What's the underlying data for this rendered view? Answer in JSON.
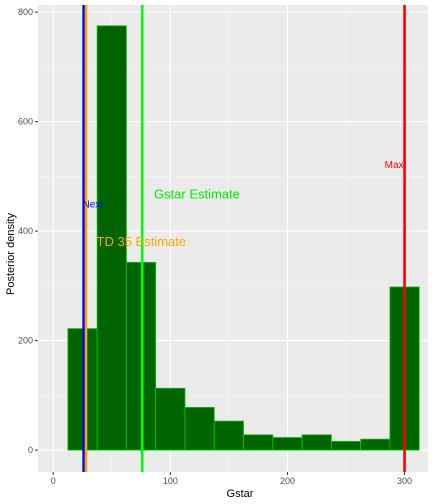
{
  "chart_data": {
    "type": "bar",
    "subtype": "histogram",
    "title": "",
    "xlabel": "Gstar",
    "ylabel": "Posterior density",
    "xlim": [
      -13,
      320
    ],
    "ylim": [
      -40,
      813
    ],
    "x_ticks": [
      0,
      100,
      200,
      300
    ],
    "y_ticks": [
      0,
      200,
      400,
      600,
      800
    ],
    "grid": true,
    "bar_fill": "#006400",
    "bar_outline": "#00cc00",
    "panel_background": "#ebebeb",
    "bins": [
      {
        "x0": 12.5,
        "x1": 37.5,
        "count": 222
      },
      {
        "x0": 37.5,
        "x1": 62.5,
        "count": 775
      },
      {
        "x0": 62.5,
        "x1": 87.5,
        "count": 343
      },
      {
        "x0": 87.5,
        "x1": 112.5,
        "count": 113
      },
      {
        "x0": 112.5,
        "x1": 137.5,
        "count": 78
      },
      {
        "x0": 137.5,
        "x1": 162.5,
        "count": 53
      },
      {
        "x0": 162.5,
        "x1": 187.5,
        "count": 28
      },
      {
        "x0": 187.5,
        "x1": 212.5,
        "count": 23
      },
      {
        "x0": 212.5,
        "x1": 237.5,
        "count": 28
      },
      {
        "x0": 237.5,
        "x1": 262.5,
        "count": 16
      },
      {
        "x0": 262.5,
        "x1": 287.5,
        "count": 20
      },
      {
        "x0": 287.5,
        "x1": 312.5,
        "count": 298
      }
    ],
    "vlines": [
      {
        "name": "Next",
        "x": 26,
        "color": "#0000ff"
      },
      {
        "name": "TD 35",
        "x": 28,
        "color": "#ffa500"
      },
      {
        "name": "Gstar",
        "x": 76,
        "color": "#00ff00"
      },
      {
        "name": "Max",
        "x": 300,
        "color": "#ff0000"
      }
    ],
    "annotations": [
      {
        "text": "Gstar Estimate",
        "x": 86,
        "y": 460,
        "color": "#00ee00",
        "size": "big"
      },
      {
        "text": "TD 35 Estimate",
        "x": 37,
        "y": 373,
        "color": "#ffa500",
        "size": "big"
      },
      {
        "text": "Next",
        "x": 25,
        "y": 443,
        "color": "#0000ff",
        "size": "small"
      },
      {
        "text": "Max",
        "x": 283,
        "y": 515,
        "color": "#ff0000",
        "size": "small"
      }
    ]
  }
}
